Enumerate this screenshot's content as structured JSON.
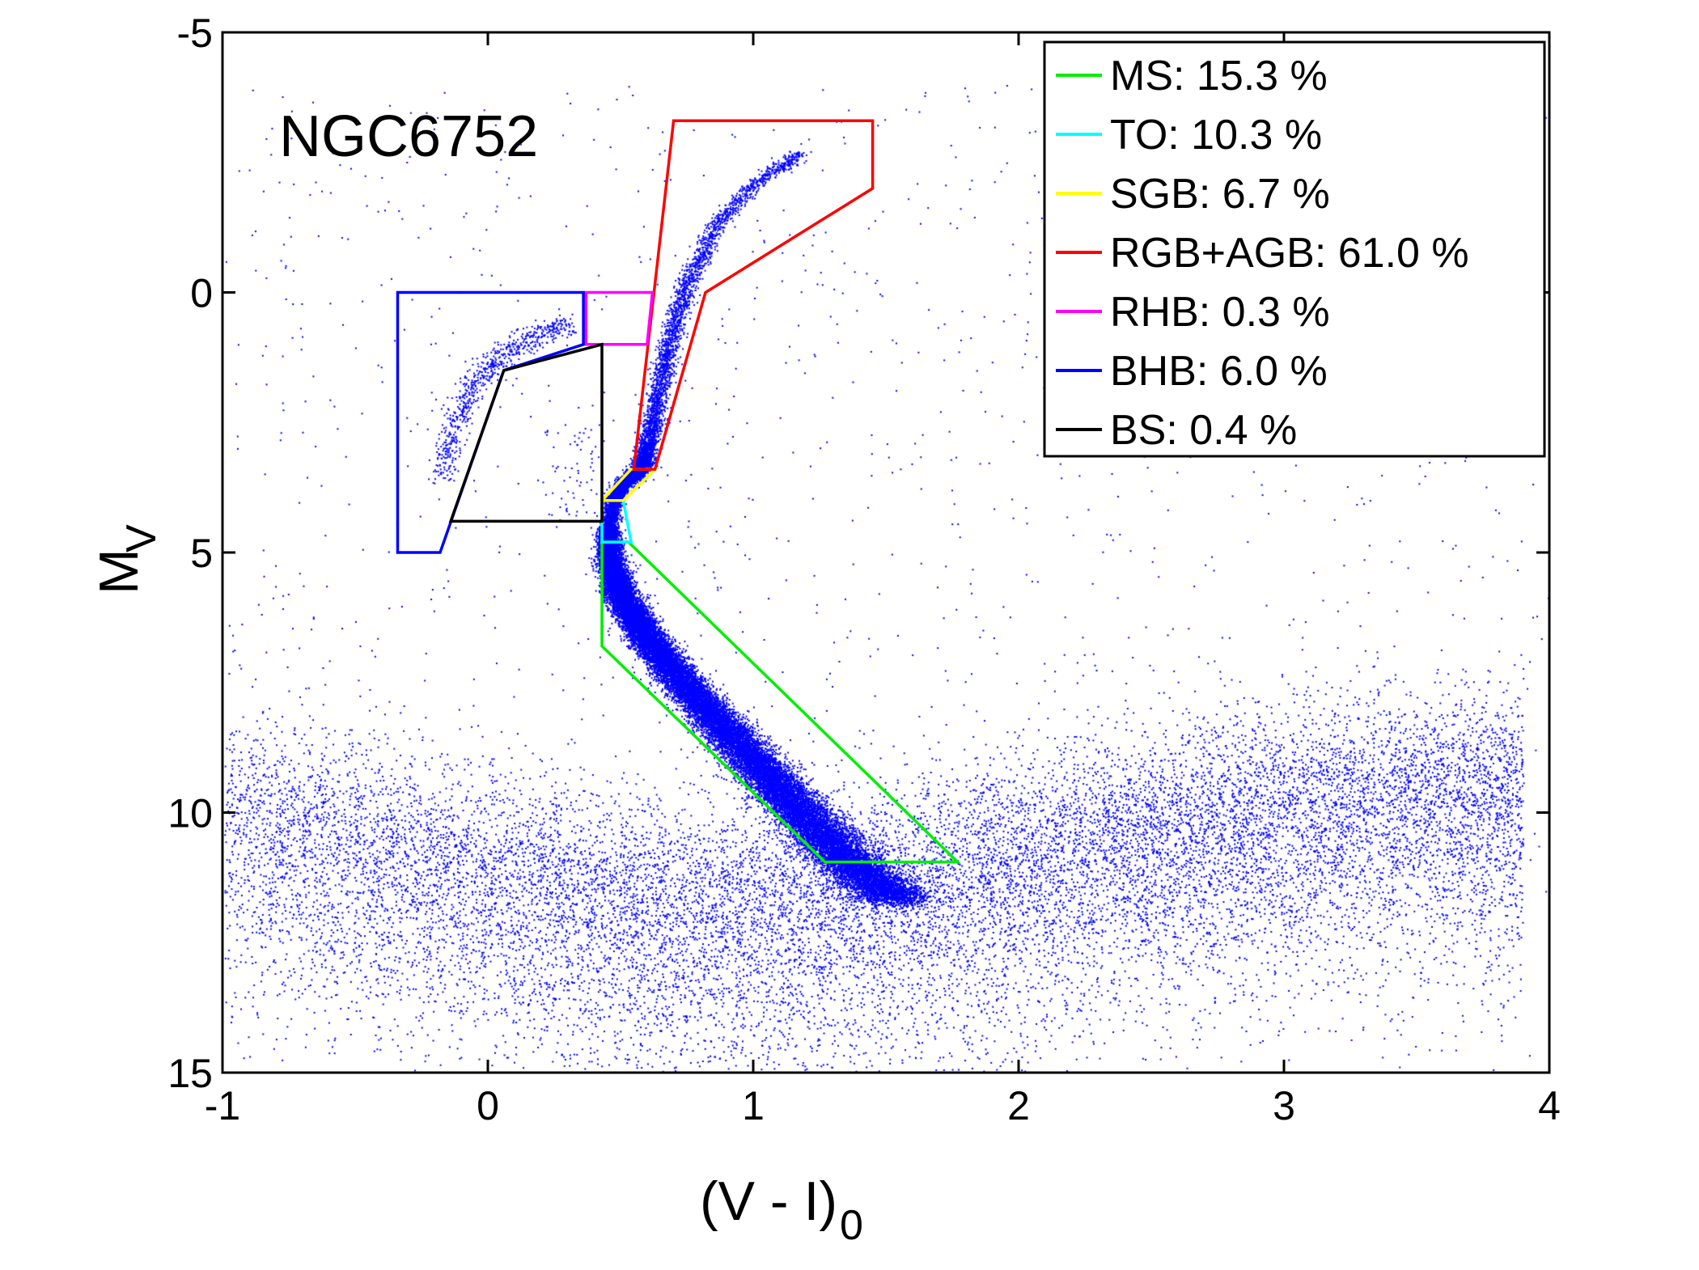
{
  "chart_data": {
    "type": "scatter",
    "title": "",
    "annotation": "NGC6752",
    "xlabel": {
      "main": "(V - I)",
      "sub": "0"
    },
    "ylabel": {
      "main": "M",
      "sub": "V"
    },
    "xlim": [
      -1,
      4
    ],
    "ylim": [
      -5,
      15
    ],
    "y_inverted": true,
    "grid": false,
    "x_ticks": [
      -1,
      0,
      1,
      2,
      3,
      4
    ],
    "x_tick_labels": [
      "-1",
      "0",
      "1",
      "2",
      "3",
      "4"
    ],
    "y_ticks": [
      -5,
      0,
      5,
      10,
      15
    ],
    "y_tick_labels": [
      "-5",
      "0",
      "5",
      "10",
      "15"
    ],
    "point_color": "#0000ff",
    "legend_position": "top-right",
    "regions": [
      {
        "name": "MS",
        "label": "MS: 15.3 %",
        "color": "#00ee00",
        "polygon": [
          [
            0.43,
            4.8
          ],
          [
            0.53,
            4.8
          ],
          [
            1.77,
            10.95
          ],
          [
            1.27,
            10.95
          ],
          [
            0.43,
            6.8
          ]
        ]
      },
      {
        "name": "TO",
        "label": "TO: 10.3 %",
        "color": "#00ffff",
        "polygon": [
          [
            0.43,
            4.0
          ],
          [
            0.51,
            4.0
          ],
          [
            0.54,
            4.8
          ],
          [
            0.43,
            4.8
          ]
        ]
      },
      {
        "name": "SGB",
        "label": "SGB: 6.7 %",
        "color": "#ffff00",
        "polygon": [
          [
            0.43,
            4.0
          ],
          [
            0.51,
            4.0
          ],
          [
            0.63,
            3.4
          ],
          [
            0.54,
            3.4
          ]
        ]
      },
      {
        "name": "RGB+AGB",
        "label": "RGB+AGB: 61.0 %",
        "color": "#ff0000",
        "polygon": [
          [
            0.55,
            3.4
          ],
          [
            0.7,
            -3.3
          ],
          [
            1.45,
            -3.3
          ],
          [
            1.45,
            -2.0
          ],
          [
            0.82,
            0.0
          ],
          [
            0.63,
            3.4
          ]
        ]
      },
      {
        "name": "RHB",
        "label": "RHB: 0.3 %",
        "color": "#ff00ff",
        "polygon": [
          [
            0.37,
            0.0
          ],
          [
            0.62,
            0.0
          ],
          [
            0.6,
            1.0
          ],
          [
            0.37,
            1.0
          ]
        ]
      },
      {
        "name": "BHB",
        "label": "BHB: 6.0 %",
        "color": "#0000ff",
        "polygon": [
          [
            -0.34,
            0.0
          ],
          [
            0.36,
            0.0
          ],
          [
            0.36,
            1.0
          ],
          [
            0.06,
            1.5
          ],
          [
            -0.18,
            5.0
          ],
          [
            -0.34,
            5.0
          ]
        ]
      },
      {
        "name": "BS",
        "label": "BS: 0.4 %",
        "color": "#000000",
        "polygon": [
          [
            -0.14,
            4.4
          ],
          [
            0.06,
            1.5
          ],
          [
            0.43,
            1.0
          ],
          [
            0.43,
            4.4
          ]
        ]
      }
    ]
  }
}
